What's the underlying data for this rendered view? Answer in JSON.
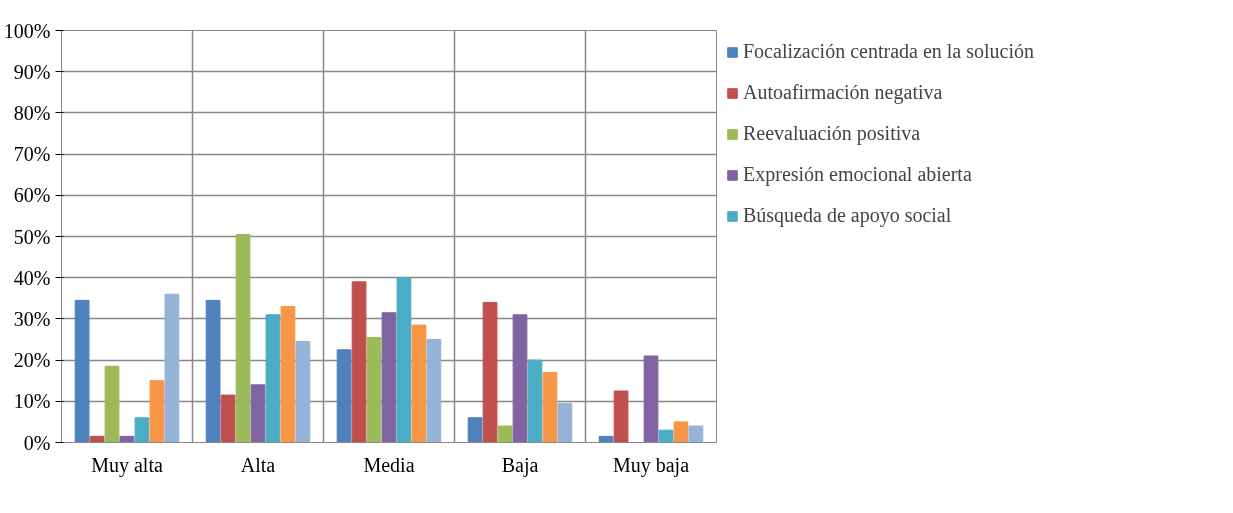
{
  "chart_data": {
    "type": "bar",
    "categories": [
      "Muy alta",
      "Alta",
      "Media",
      "Baja",
      "Muy baja"
    ],
    "series": [
      {
        "name": "Focalización centrada en la solución",
        "color": "#4f81bd",
        "values": [
          34.5,
          34.5,
          22.5,
          6,
          1.5
        ]
      },
      {
        "name": "Autoafirmación negativa",
        "color": "#c0504d",
        "values": [
          1.5,
          11.5,
          39,
          34,
          12.5
        ]
      },
      {
        "name": "Reevaluación positiva",
        "color": "#9bbb59",
        "values": [
          18.5,
          50.5,
          25.5,
          4,
          0
        ]
      },
      {
        "name": "Expresión emocional abierta",
        "color": "#8064a2",
        "values": [
          1.5,
          14,
          31.5,
          31,
          21
        ]
      },
      {
        "name": "Búsqueda de apoyo social",
        "color": "#4bacc6",
        "values": [
          6,
          31,
          40,
          20,
          3
        ]
      },
      {
        "color": "#f79646",
        "values": [
          15,
          33,
          28.5,
          17,
          5
        ]
      },
      {
        "color": "#95b3d7",
        "values": [
          36,
          24.5,
          25,
          9.5,
          4
        ]
      }
    ],
    "ylim": [
      0,
      100
    ],
    "yticks": [
      {
        "value": 0,
        "label": "0%"
      },
      {
        "value": 10,
        "label": "10%"
      },
      {
        "value": 20,
        "label": "20%"
      },
      {
        "value": 30,
        "label": "30%"
      },
      {
        "value": 40,
        "label": "40%"
      },
      {
        "value": 50,
        "label": "50%"
      },
      {
        "value": 60,
        "label": "60%"
      },
      {
        "value": 70,
        "label": "70%"
      },
      {
        "value": 80,
        "label": "80%"
      },
      {
        "value": 90,
        "label": "90%"
      },
      {
        "value": 100,
        "label": "100%"
      }
    ],
    "grid": true,
    "legend": "right"
  }
}
